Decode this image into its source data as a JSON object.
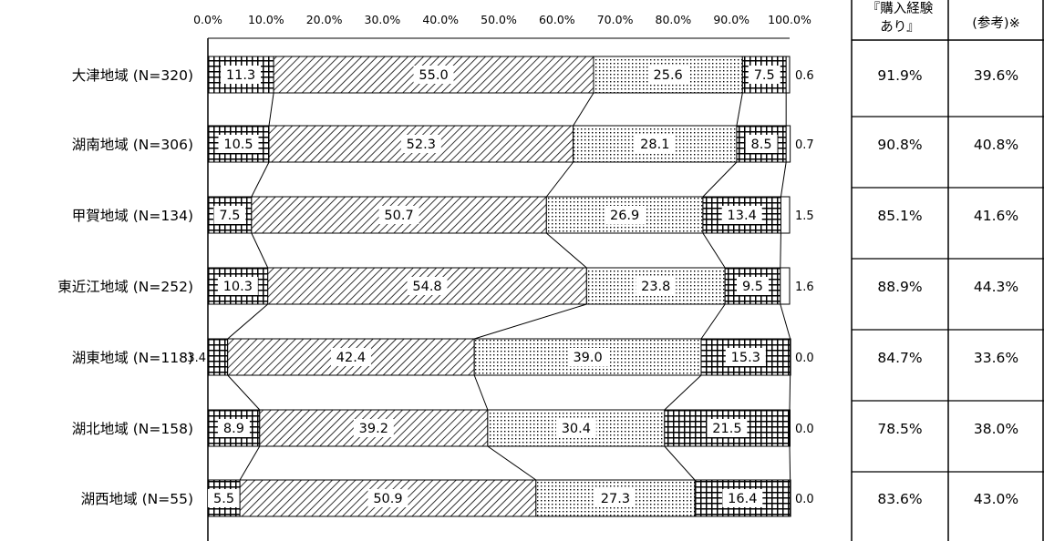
{
  "chart_data": {
    "type": "bar",
    "orientation": "horizontal",
    "stacked": true,
    "x_tick_labels": [
      "0.0%",
      "10.0%",
      "20.0%",
      "30.0%",
      "40.0%",
      "50.0%",
      "60.0%",
      "70.0%",
      "80.0%",
      "90.0%",
      "100.0%"
    ],
    "xlim": [
      0,
      100
    ],
    "categories": [
      "大津地域 (N=320)",
      "湖南地域 (N=306)",
      "甲賀地域 (N=134)",
      "東近江地域 (N=252)",
      "湖東地域 (N=118)",
      "湖北地域 (N=158)",
      "湖西地域 (N=55)"
    ],
    "series": [
      {
        "values": [
          11.3,
          10.5,
          7.5,
          10.3,
          3.4,
          8.9,
          5.5
        ]
      },
      {
        "values": [
          55.0,
          52.3,
          50.7,
          54.8,
          42.4,
          39.2,
          50.9
        ]
      },
      {
        "values": [
          25.6,
          28.1,
          26.9,
          23.8,
          39.0,
          30.4,
          27.3
        ]
      },
      {
        "values": [
          7.5,
          8.5,
          13.4,
          9.5,
          15.3,
          21.5,
          16.4
        ]
      },
      {
        "values": [
          0.6,
          0.7,
          1.5,
          1.6,
          0.0,
          0.0,
          0.0
        ]
      }
    ],
    "segment_labels": [
      [
        "11.3",
        "55.0",
        "25.6",
        "7.5",
        "0.6"
      ],
      [
        "10.5",
        "52.3",
        "28.1",
        "8.5",
        "0.7"
      ],
      [
        "7.5",
        "50.7",
        "26.9",
        "13.4",
        "1.5"
      ],
      [
        "10.3",
        "54.8",
        "23.8",
        "9.5",
        "1.6"
      ],
      [
        "3.4",
        "42.4",
        "39.0",
        "15.3",
        "0.0"
      ],
      [
        "8.9",
        "39.2",
        "30.4",
        "21.5",
        "0.0"
      ],
      [
        "5.5",
        "50.9",
        "27.3",
        "16.4",
        "0.0"
      ]
    ],
    "grid": false,
    "legend": "none"
  },
  "side_table": {
    "headers": [
      "『購入経験\nあり』",
      "(参考)※"
    ],
    "rows": [
      [
        "91.9%",
        "39.6%"
      ],
      [
        "90.8%",
        "40.8%"
      ],
      [
        "85.1%",
        "41.6%"
      ],
      [
        "88.9%",
        "44.3%"
      ],
      [
        "84.7%",
        "33.6%"
      ],
      [
        "78.5%",
        "38.0%"
      ],
      [
        "83.6%",
        "43.0%"
      ]
    ]
  }
}
